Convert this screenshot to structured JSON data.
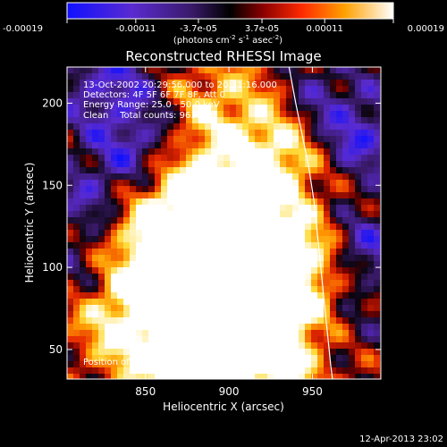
{
  "chart_data": {
    "type": "heatmap",
    "title": "Reconstructed RHESSI Image",
    "colorbar": {
      "colormap": "blue-purple-black-red-orange-yellow-white",
      "tick_labels": [
        "-0.00019",
        "-0.00011",
        "-3.7e-05",
        "3.7e-05",
        "0.00011",
        "0.00019"
      ],
      "tick_values": [
        -0.00019,
        -0.00011,
        -3.7e-05,
        3.7e-05,
        0.00011,
        0.00019
      ],
      "range": [
        -0.00019,
        0.00019
      ],
      "unit_parts": [
        "(photons cm",
        "-2",
        " s",
        "-1",
        " asec",
        "-2",
        ")"
      ]
    },
    "xlabel": "Heliocentric X (arcsec)",
    "ylabel": "Heliocentric Y (arcsec)",
    "xlim": [
      803,
      991
    ],
    "ylim": [
      32,
      222
    ],
    "xticks": [
      850,
      900,
      950
    ],
    "yticks": [
      50,
      100,
      150,
      200
    ],
    "annotations": [
      "13-Oct-2002 20:29:56.000 to 20:31:16.000",
      "Detectors: 4F 5F 6F 7F 8F, Att 0",
      "Energy Range: 25.0 - 50.0 keV",
      "Clean    Total counts: 963."
    ],
    "peak_label": "Position of Peak = [911,66]",
    "peak_x": 911,
    "peak_y": 66,
    "limb_curve_x": [
      936,
      940,
      944,
      948,
      951,
      953,
      955,
      957,
      959,
      961,
      962
    ],
    "limb_curve_y": [
      222,
      200,
      180,
      160,
      140,
      120,
      100,
      80,
      60,
      40,
      32
    ],
    "timestamp": "12-Apr-2013 23:02"
  }
}
